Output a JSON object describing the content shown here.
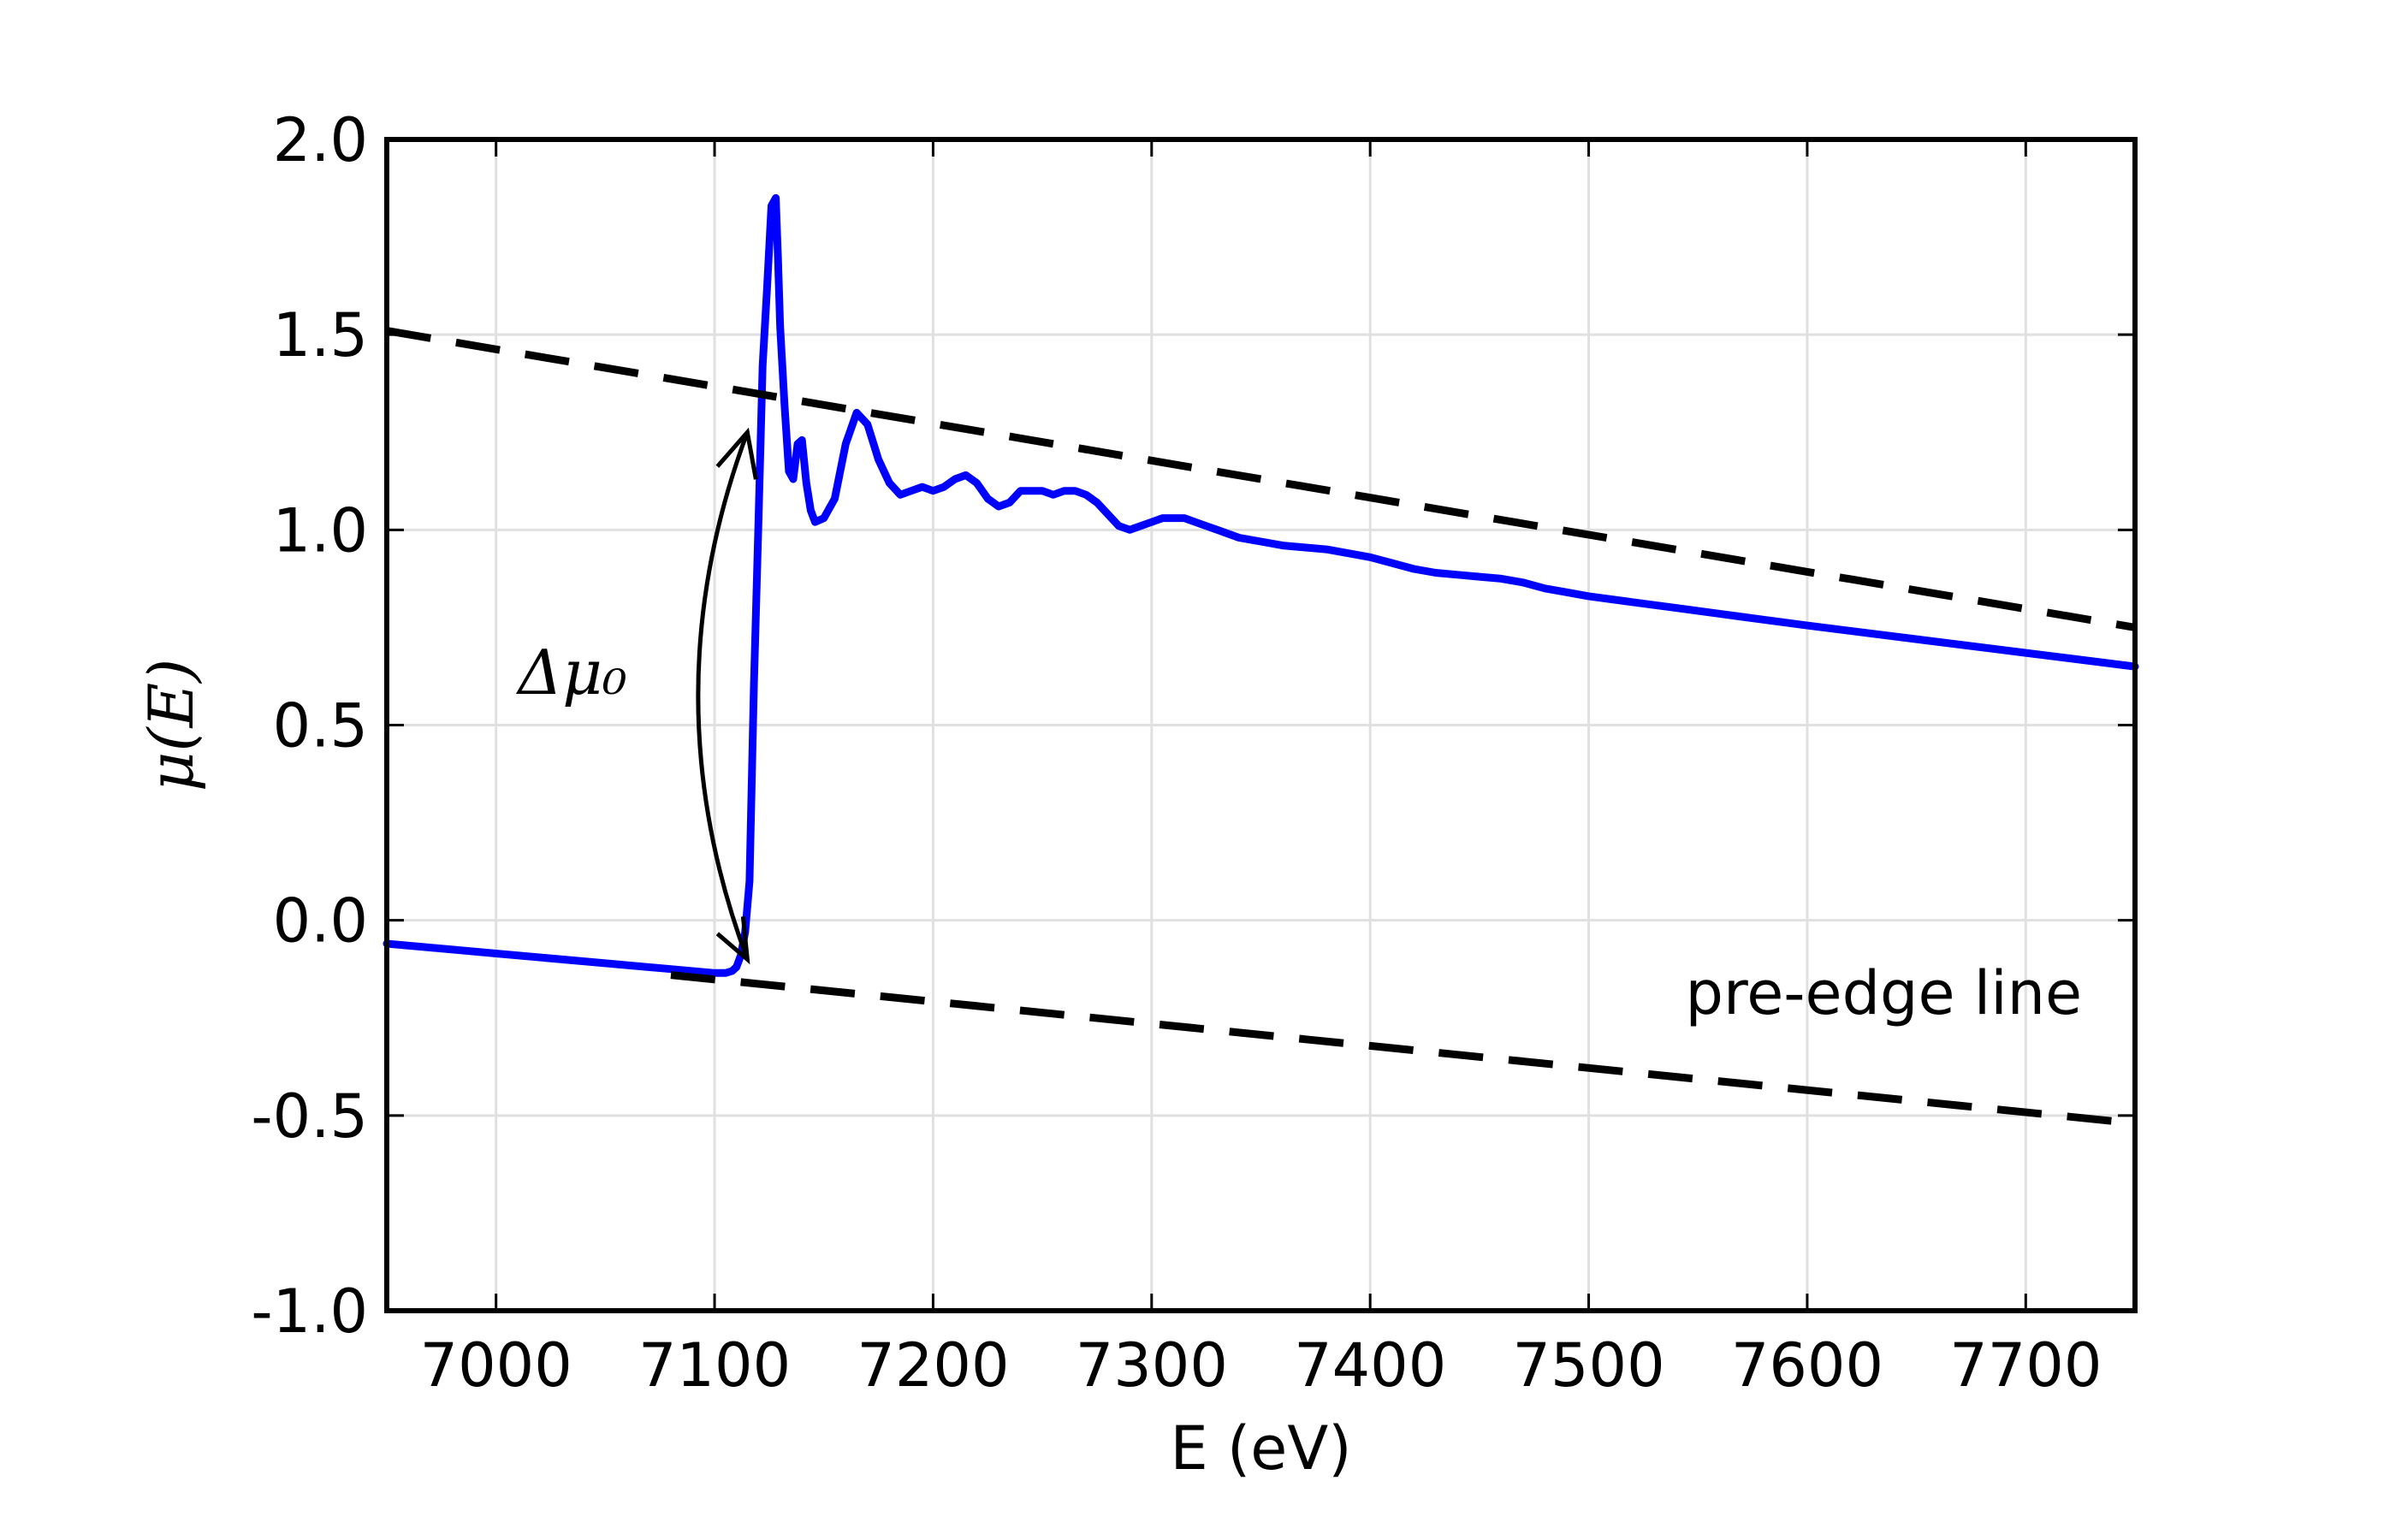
{
  "chart_data": {
    "type": "line",
    "xlabel": "E (eV)",
    "ylabel": "μ(E)",
    "xlim": [
      6950,
      7750
    ],
    "ylim": [
      -1.0,
      2.0
    ],
    "x_ticks": [
      7000,
      7100,
      7200,
      7300,
      7400,
      7500,
      7600,
      7700
    ],
    "x_tick_labels": [
      "7000",
      "7100",
      "7200",
      "7300",
      "7400",
      "7500",
      "7600",
      "7700"
    ],
    "y_ticks": [
      -1.0,
      -0.5,
      0.0,
      0.5,
      1.0,
      1.5,
      2.0
    ],
    "y_tick_labels": [
      "-1.0",
      "-0.5",
      "0.0",
      "0.5",
      "1.0",
      "1.5",
      "2.0"
    ],
    "grid": true,
    "colors": {
      "spectrum": "#0000ff",
      "reference_lines": "#000000",
      "grid": "#e0e0e0"
    },
    "series": [
      {
        "style": "solid",
        "x": [
          6950,
          7000,
          7050,
          7080,
          7100,
          7105,
          7108,
          7110,
          7112,
          7114,
          7116,
          7118,
          7120,
          7122,
          7124,
          7126,
          7128,
          7129,
          7130,
          7132,
          7134,
          7136,
          7138,
          7140,
          7142,
          7144,
          7146,
          7150,
          7155,
          7160,
          7165,
          7170,
          7175,
          7180,
          7185,
          7190,
          7195,
          7200,
          7205,
          7210,
          7215,
          7220,
          7225,
          7230,
          7235,
          7240,
          7245,
          7250,
          7255,
          7260,
          7265,
          7270,
          7275,
          7280,
          7285,
          7290,
          7295,
          7300,
          7305,
          7310,
          7315,
          7320,
          7325,
          7330,
          7340,
          7350,
          7360,
          7370,
          7380,
          7390,
          7400,
          7410,
          7420,
          7430,
          7440,
          7450,
          7460,
          7470,
          7480,
          7490,
          7500,
          7520,
          7540,
          7560,
          7580,
          7600,
          7650,
          7700,
          7750
        ],
        "y": [
          -0.06,
          -0.085,
          -0.11,
          -0.125,
          -0.135,
          -0.135,
          -0.13,
          -0.12,
          -0.09,
          -0.03,
          0.1,
          0.6,
          1.0,
          1.42,
          1.62,
          1.83,
          1.85,
          1.7,
          1.52,
          1.32,
          1.15,
          1.13,
          1.22,
          1.23,
          1.12,
          1.05,
          1.02,
          1.03,
          1.08,
          1.22,
          1.3,
          1.27,
          1.18,
          1.12,
          1.09,
          1.1,
          1.11,
          1.1,
          1.11,
          1.13,
          1.14,
          1.12,
          1.08,
          1.06,
          1.07,
          1.1,
          1.1,
          1.1,
          1.09,
          1.1,
          1.1,
          1.09,
          1.07,
          1.04,
          1.01,
          1.0,
          1.01,
          1.02,
          1.03,
          1.03,
          1.03,
          1.02,
          1.01,
          1.0,
          0.98,
          0.97,
          0.96,
          0.955,
          0.95,
          0.94,
          0.93,
          0.915,
          0.9,
          0.89,
          0.885,
          0.88,
          0.875,
          0.865,
          0.85,
          0.84,
          0.83,
          0.815,
          0.8,
          0.785,
          0.77,
          0.755,
          0.72,
          0.685,
          0.65
        ]
      },
      {
        "style": "dashed",
        "x": [
          6950,
          7750
        ],
        "y": [
          1.51,
          0.75
        ]
      },
      {
        "style": "dashed",
        "x": [
          7080,
          7750
        ],
        "y": [
          -0.14,
          -0.52
        ]
      }
    ],
    "annotations": [
      {
        "text": "Δμ₀",
        "x": 7035,
        "y": 0.58
      },
      {
        "text": "pre-edge line",
        "x": 7635,
        "y": -0.24
      }
    ],
    "arrow": {
      "x": 7115,
      "y_from": -0.1,
      "y_to": 1.25
    }
  }
}
